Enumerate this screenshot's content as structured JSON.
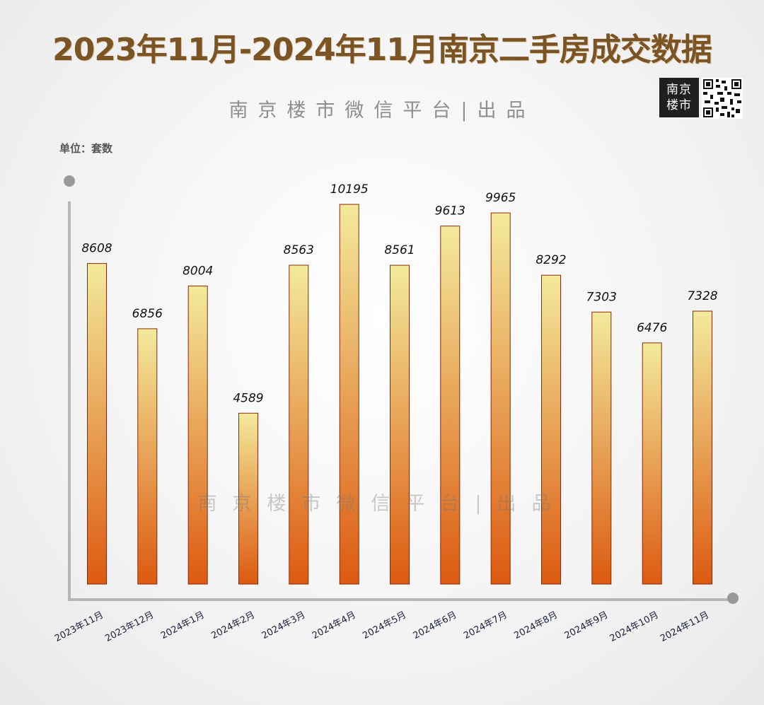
{
  "title": "2023年11月-2024年11月南京二手房成交数据",
  "subtitle": "南京楼市微信平台|出品",
  "watermark": "南京楼市微信平台|出品",
  "logo": {
    "line1": "南京",
    "line2": "楼市"
  },
  "unit_label": "单位：套数",
  "colors": {
    "bar_top": "#f3ea9c",
    "bar_bottom": "#dc5a10",
    "bar_stroke": "#8a2a0a",
    "axis": "#b7b7b7",
    "title": "#7a5424"
  },
  "chart_data": {
    "type": "bar",
    "title": "2023年11月-2024年11月南京二手房成交数据",
    "ylabel": "单位：套数",
    "xlabel": "",
    "ylim": [
      0,
      10195
    ],
    "grid": false,
    "categories": [
      "2023年11月",
      "2023年12月",
      "2024年1月",
      "2024年2月",
      "2024年3月",
      "2024年4月",
      "2024年5月",
      "2024年6月",
      "2024年7月",
      "2024年8月",
      "2024年9月",
      "2024年10月",
      "2024年11月"
    ],
    "values": [
      8608,
      6856,
      8004,
      4589,
      8563,
      10195,
      8561,
      9613,
      9965,
      8292,
      7303,
      6476,
      7328
    ]
  }
}
